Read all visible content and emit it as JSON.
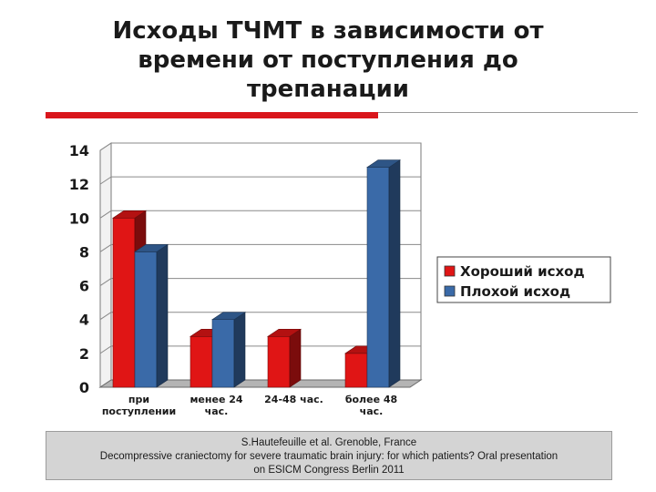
{
  "slide": {
    "title_lines": [
      "Исходы ТЧМТ в зависимости от",
      "времени от поступления до",
      "трепанации"
    ]
  },
  "colors": {
    "accent_red": "#d9161c",
    "series_good": "#e01515",
    "series_bad": "#3a6aa8",
    "citation_bg": "#d4d4d4"
  },
  "chart_data": {
    "type": "bar",
    "style": "3d-clustered-column",
    "categories": [
      [
        "при",
        "поступлении"
      ],
      [
        "менее 24",
        "час."
      ],
      [
        "24-48 час."
      ],
      [
        "более 48",
        "час."
      ]
    ],
    "series": [
      {
        "name": "Хороший исход",
        "values": [
          10,
          3,
          3,
          2
        ]
      },
      {
        "name": "Плохой исход",
        "values": [
          8,
          4,
          0,
          13
        ]
      }
    ],
    "ylim": [
      0,
      14
    ],
    "yticks": [
      "0",
      "2",
      "4",
      "6",
      "8",
      "10",
      "12",
      "14"
    ],
    "grid": true,
    "legend_position": "right"
  },
  "citation": {
    "lines": [
      "S.Hautefeuille et al. Grenoble, France",
      "Decompressive craniectomy for severe traumatic brain injury: for which patients? Oral presentation",
      "on  ESICM Congress Berlin 2011"
    ]
  }
}
